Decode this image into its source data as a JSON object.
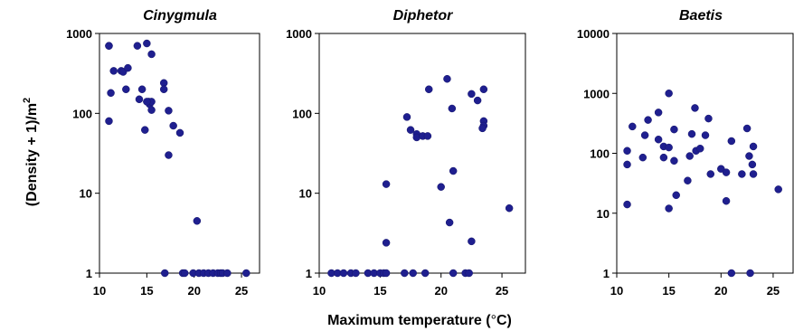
{
  "figure": {
    "ylabel_main": "(Density + 1)/m",
    "ylabel_sup": "2",
    "xlabel_main": "Maximum temperature (",
    "xlabel_deg": "°",
    "xlabel_end": "C)"
  },
  "chart_data": [
    {
      "type": "scatter",
      "title": "Cinygmula",
      "yscale": "log",
      "xlim": [
        10,
        27
      ],
      "ylim": [
        1,
        1000
      ],
      "xticks": [
        10,
        15,
        20,
        25
      ],
      "yticks": [
        1,
        10,
        100,
        1000
      ],
      "x": [
        11.0,
        11.2,
        11.5,
        12.3,
        12.8,
        12.5,
        13.0,
        14.0,
        14.2,
        14.5,
        15.0,
        15.2,
        15.3,
        15.5,
        15.5,
        15.5,
        11.0,
        11.0,
        14.8,
        15.0,
        16.8,
        16.8,
        17.3,
        17.3,
        17.8,
        18.5,
        16.9,
        18.8,
        19.0,
        19.9,
        20.3,
        20.5,
        21.0,
        21.5,
        22.0,
        22.5,
        22.8,
        23.0,
        23.5,
        25.5
      ],
      "y": [
        700,
        180,
        340,
        340,
        200,
        330,
        370,
        700,
        150,
        200,
        750,
        140,
        130,
        550,
        140,
        110,
        80,
        700,
        62,
        140,
        240,
        200,
        108,
        30,
        70,
        57,
        1,
        1,
        1,
        1,
        4.5,
        1,
        1,
        1,
        1,
        1,
        1,
        1,
        1,
        1
      ]
    },
    {
      "type": "scatter",
      "title": "Diphetor",
      "yscale": "log",
      "xlim": [
        10,
        27
      ],
      "ylim": [
        1,
        1000
      ],
      "xticks": [
        10,
        15,
        20,
        25
      ],
      "yticks": [
        1,
        10,
        100,
        1000
      ],
      "x": [
        11.0,
        11.5,
        12.0,
        12.6,
        13.0,
        14.0,
        14.5,
        15.0,
        15.3,
        15.5,
        15.5,
        15.5,
        17.0,
        17.2,
        17.5,
        17.7,
        18.0,
        18.0,
        18.5,
        18.9,
        18.7,
        19.0,
        20.0,
        20.5,
        20.7,
        20.9,
        21.0,
        21.0,
        22.0,
        22.3,
        22.5,
        22.5,
        23.0,
        23.5,
        23.5,
        23.5,
        23.4,
        25.6
      ],
      "y": [
        1,
        1,
        1,
        1,
        1,
        1,
        1,
        1,
        1,
        1,
        13,
        2.4,
        1,
        90,
        62,
        1,
        55,
        50,
        52,
        52,
        1,
        200,
        12,
        270,
        4.3,
        115,
        19,
        1,
        1,
        1,
        175,
        2.5,
        145,
        200,
        80,
        70,
        65,
        6.5
      ]
    },
    {
      "type": "scatter",
      "title": "Baetis",
      "yscale": "log",
      "xlim": [
        10,
        27
      ],
      "ylim": [
        1,
        10000
      ],
      "xticks": [
        10,
        15,
        20,
        25
      ],
      "yticks": [
        1,
        10,
        100,
        1000,
        10000
      ],
      "x": [
        11.0,
        11.0,
        11.0,
        11.5,
        12.5,
        12.7,
        13.0,
        14.0,
        14.0,
        14.5,
        14.5,
        15.0,
        15.0,
        15.0,
        15.5,
        15.5,
        15.7,
        16.8,
        17.0,
        17.2,
        17.5,
        17.6,
        18.0,
        18.5,
        18.8,
        19.0,
        20.0,
        20.5,
        20.5,
        21.0,
        21.0,
        22.0,
        22.5,
        22.7,
        22.8,
        23.0,
        23.1,
        23.1,
        25.5
      ],
      "y": [
        14,
        65,
        110,
        280,
        85,
        200,
        360,
        170,
        480,
        130,
        85,
        1000,
        125,
        12,
        250,
        75,
        20,
        35,
        90,
        210,
        570,
        110,
        120,
        200,
        380,
        45,
        55,
        16,
        48,
        160,
        1,
        45,
        260,
        90,
        1,
        65,
        130,
        45,
        25
      ]
    }
  ]
}
